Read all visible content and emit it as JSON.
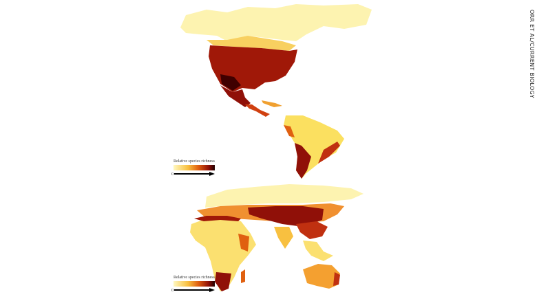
{
  "legends": [
    {
      "title": "Relative species richness",
      "min_label": "0"
    },
    {
      "title": "Relative species richness",
      "min_label": "0"
    }
  ],
  "credit": "ORR ET AL/CURRENT BIOLOGY"
}
